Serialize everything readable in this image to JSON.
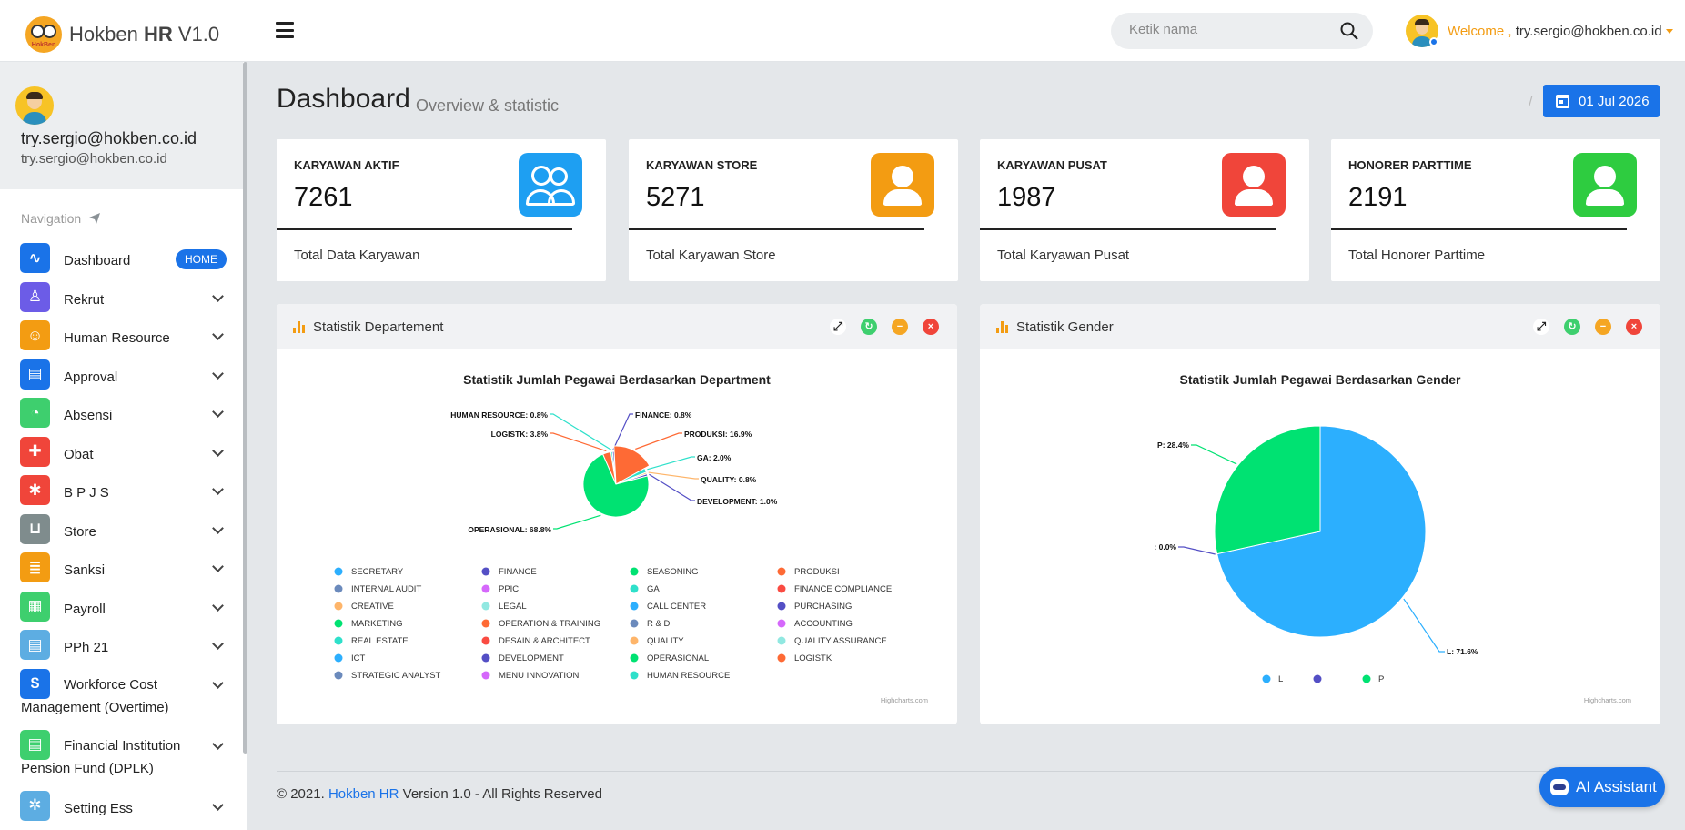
{
  "header": {
    "brand": {
      "name": "Hokben",
      "bold": "HR",
      "version": "V1.0",
      "logo_text": "HokBen"
    },
    "search_placeholder": "Ketik nama",
    "welcome_label": "Welcome ,",
    "user_email": "try.sergio@hokben.co.id"
  },
  "sidebar": {
    "profile": {
      "name": "try.sergio@hokben.co.id",
      "email": "try.sergio@hokben.co.id"
    },
    "nav_heading": "Navigation",
    "home_badge": "HOME",
    "items": [
      {
        "label": "Dashboard",
        "icon": "heartbeat-icon",
        "color": "#1a73e8"
      },
      {
        "label": "Rekrut",
        "icon": "user-add-icon",
        "color": "#6c5ce7"
      },
      {
        "label": "Human Resource",
        "icon": "people-icon",
        "color": "#f39c12"
      },
      {
        "label": "Approval",
        "icon": "clipboard-icon",
        "color": "#1a73e8"
      },
      {
        "label": "Absensi",
        "icon": "clock-icon",
        "color": "#3ecf6e"
      },
      {
        "label": "Obat",
        "icon": "medkit-icon",
        "color": "#f0453a"
      },
      {
        "label": "B P J S",
        "icon": "asterisk-icon",
        "color": "#f0453a"
      },
      {
        "label": "Store",
        "icon": "cart-icon",
        "color": "#7f8c8d"
      },
      {
        "label": "Sanksi",
        "icon": "list-icon",
        "color": "#f39c12"
      },
      {
        "label": "Payroll",
        "icon": "calculator-icon",
        "color": "#3ecf6e"
      },
      {
        "label": "PPh 21",
        "icon": "document-icon",
        "color": "#5dade2"
      },
      {
        "label": "Workforce Cost Management (Overtime)",
        "icon": "money-icon",
        "color": "#1a73e8"
      },
      {
        "label": "Financial Institution Pension Fund (DPLK)",
        "icon": "ledger-icon",
        "color": "#3ecf6e"
      },
      {
        "label": "Setting Ess",
        "icon": "gear-icon",
        "color": "#5dade2"
      }
    ]
  },
  "page": {
    "title": "Dashboard",
    "subtitle": "Overview & statistic",
    "date": "01 Jul 2026"
  },
  "stats": [
    {
      "title": "KARYAWAN AKTIF",
      "value": "7261",
      "footer": "Total Data Karyawan",
      "color": "#1e9ff2",
      "icon": "users-icon"
    },
    {
      "title": "KARYAWAN STORE",
      "value": "5271",
      "footer": "Total Karyawan Store",
      "color": "#f39c12",
      "icon": "user-icon"
    },
    {
      "title": "KARYAWAN PUSAT",
      "value": "1987",
      "footer": "Total Karyawan Pusat",
      "color": "#f0453a",
      "icon": "user-icon"
    },
    {
      "title": "HONORER PARTTIME",
      "value": "2191",
      "footer": "Total Honorer Parttime",
      "color": "#2ecc40",
      "icon": "user-icon"
    }
  ],
  "panels": {
    "department_title": "Statistik Departement",
    "gender_title": "Statistik Gender",
    "credit": "Highcharts.com"
  },
  "chart_data": [
    {
      "type": "pie",
      "title": "Statistik Jumlah Pegawai Berdasarkan Department",
      "labeled_slices": [
        {
          "name": "OPERASIONAL",
          "value": 68.8
        },
        {
          "name": "PRODUKSI",
          "value": 16.9
        },
        {
          "name": "LOGISTK",
          "value": 3.8
        },
        {
          "name": "GA",
          "value": 2.0
        },
        {
          "name": "DEVELOPMENT",
          "value": 1.0
        },
        {
          "name": "HUMAN RESOURCE",
          "value": 0.8
        },
        {
          "name": "FINANCE",
          "value": 0.8
        },
        {
          "name": "QUALITY",
          "value": 0.8
        }
      ],
      "legend": [
        {
          "name": "SECRETARY",
          "color": "#2caffe"
        },
        {
          "name": "FINANCE",
          "color": "#544fc5"
        },
        {
          "name": "SEASONING",
          "color": "#00e272"
        },
        {
          "name": "PRODUKSI",
          "color": "#fe6a35"
        },
        {
          "name": "INTERNAL AUDIT",
          "color": "#6b8abc"
        },
        {
          "name": "PPIC",
          "color": "#d568fb"
        },
        {
          "name": "GA",
          "color": "#2ee0ca"
        },
        {
          "name": "FINANCE COMPLIANCE",
          "color": "#fa4b42"
        },
        {
          "name": "CREATIVE",
          "color": "#feb56a"
        },
        {
          "name": "LEGAL",
          "color": "#91e8e1"
        },
        {
          "name": "CALL CENTER",
          "color": "#2caffe"
        },
        {
          "name": "PURCHASING",
          "color": "#544fc5"
        },
        {
          "name": "MARKETING",
          "color": "#00e272"
        },
        {
          "name": "OPERATION & TRAINING",
          "color": "#fe6a35"
        },
        {
          "name": "R & D",
          "color": "#6b8abc"
        },
        {
          "name": "ACCOUNTING",
          "color": "#d568fb"
        },
        {
          "name": "REAL ESTATE",
          "color": "#2ee0ca"
        },
        {
          "name": "DESAIN & ARCHITECT",
          "color": "#fa4b42"
        },
        {
          "name": "QUALITY",
          "color": "#feb56a"
        },
        {
          "name": "QUALITY ASSURANCE",
          "color": "#91e8e1"
        },
        {
          "name": "ICT",
          "color": "#2caffe"
        },
        {
          "name": "DEVELOPMENT",
          "color": "#544fc5"
        },
        {
          "name": "OPERASIONAL",
          "color": "#00e272"
        },
        {
          "name": "LOGISTK",
          "color": "#fe6a35"
        },
        {
          "name": "STRATEGIC ANALYST",
          "color": "#6b8abc"
        },
        {
          "name": "MENU INNOVATION",
          "color": "#d568fb"
        },
        {
          "name": "HUMAN RESOURCE",
          "color": "#2ee0ca"
        }
      ]
    },
    {
      "type": "pie",
      "title": "Statistik Jumlah Pegawai Berdasarkan Gender",
      "slices": [
        {
          "name": "L",
          "value": 71.6,
          "color": "#2caffe"
        },
        {
          "name": "",
          "value": 0.0,
          "color": "#544fc5"
        },
        {
          "name": "P",
          "value": 28.4,
          "color": "#00e272"
        }
      ]
    }
  ],
  "footer": {
    "prefix": "© 2021.",
    "brand": "Hokben HR",
    "suffix": "Version 1.0 - All Rights Reserved"
  },
  "ai_assistant": "AI Assistant"
}
